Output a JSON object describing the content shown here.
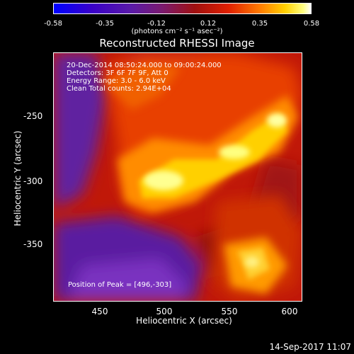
{
  "colorbar": {
    "ticks": [
      "-0.58",
      "-0.35",
      "-0.12",
      "0.12",
      "0.35",
      "0.58"
    ],
    "units_label": "(photons cm⁻² s⁻¹ asec⁻²)"
  },
  "title": "Reconstructed RHESSI Image",
  "info": {
    "line1": "20-Dec-2014 08:50:24.000 to 09:00:24.000",
    "line2": "Detectors: 3F 6F 7F 9F, Att 0",
    "line3": "Energy Range: 3.0 - 6.0 keV",
    "line4": "Clean     Total counts: 2.94E+04",
    "peak": "Position of Peak = [496,-303]"
  },
  "chart_data": {
    "type": "heatmap",
    "title": "Reconstructed RHESSI Image",
    "xlabel": "Heliocentric X (arcsec)",
    "ylabel": "Heliocentric Y (arcsec)",
    "xlim": [
      412,
      605
    ],
    "ylim": [
      -396,
      -204
    ],
    "x_ticks": [
      "450",
      "500",
      "550",
      "600"
    ],
    "y_ticks": [
      "-250",
      "-300",
      "-350"
    ],
    "colorbar_range": [
      -0.58,
      0.58
    ],
    "peak_position": [
      496,
      -303
    ]
  },
  "timestamp": "14-Sep-2017 11:07"
}
